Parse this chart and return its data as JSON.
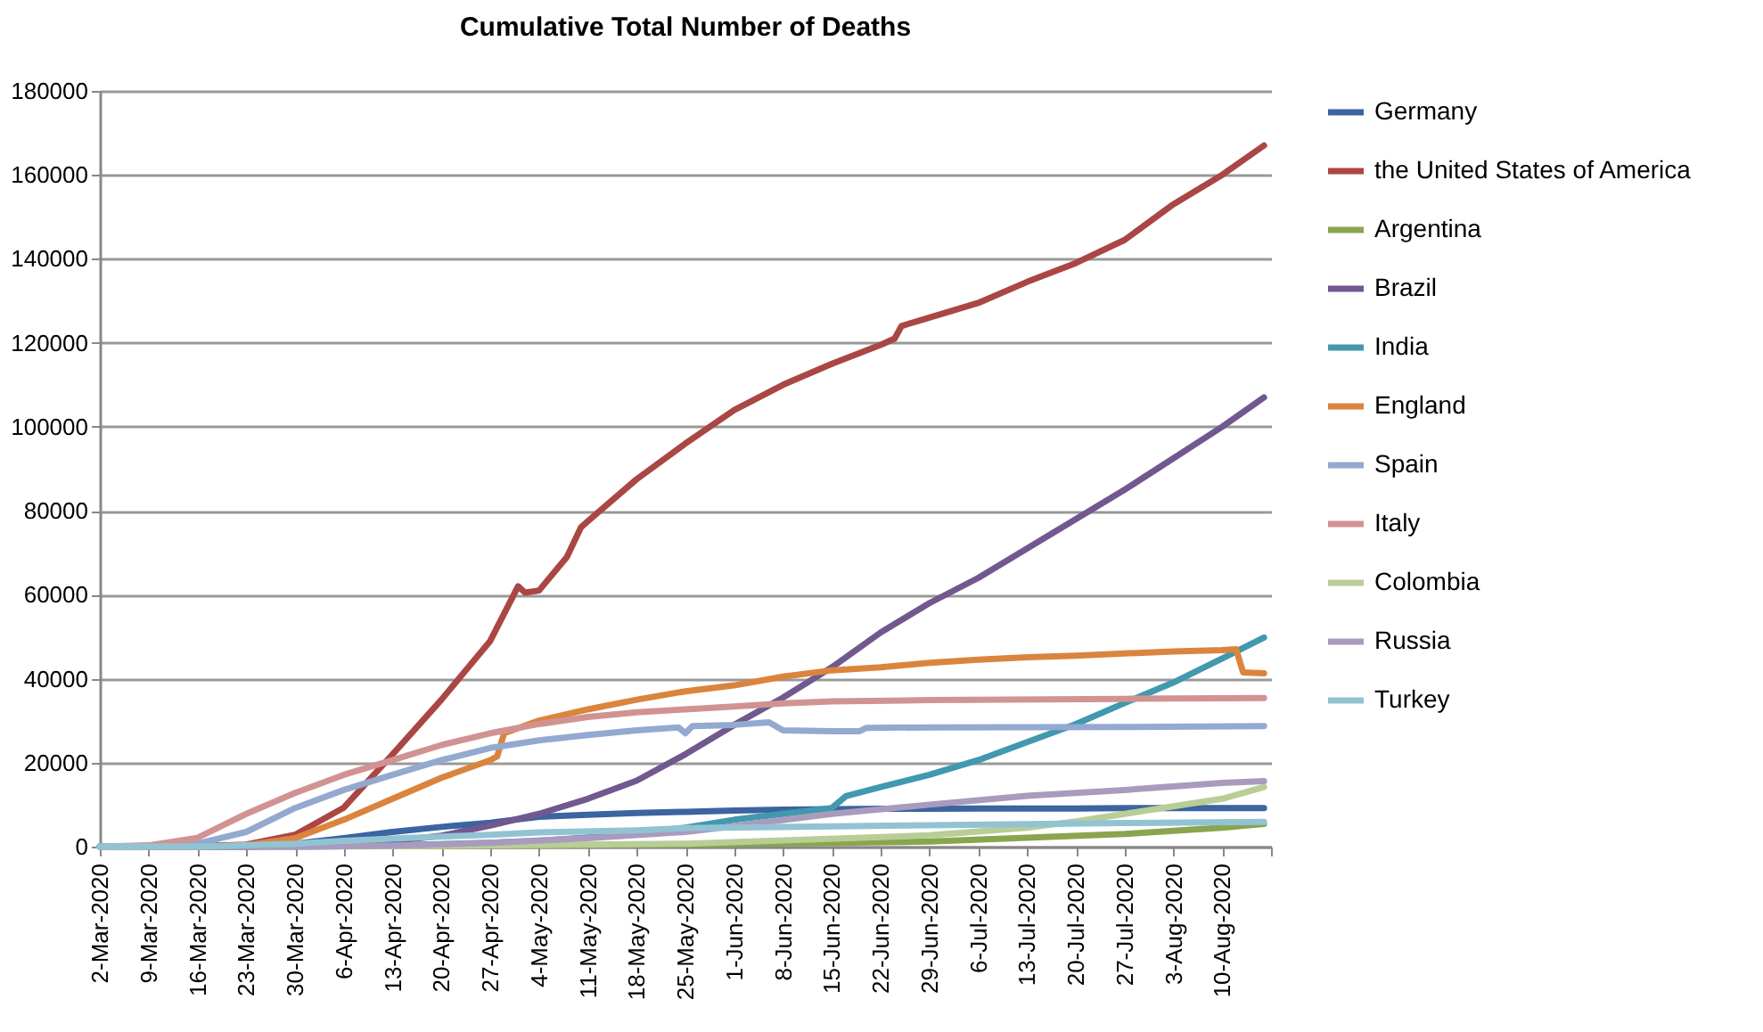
{
  "chart_data": {
    "type": "line",
    "title": "Cumulative Total Number of Deaths",
    "xlim": [
      "2020-03-02",
      "2020-08-17"
    ],
    "xticks": [
      {
        "value": "2020-03-02",
        "label": "2-Mar-2020"
      },
      {
        "value": "2020-03-09",
        "label": "9-Mar-2020"
      },
      {
        "value": "2020-03-16",
        "label": "16-Mar-2020"
      },
      {
        "value": "2020-03-23",
        "label": "23-Mar-2020"
      },
      {
        "value": "2020-03-30",
        "label": "30-Mar-2020"
      },
      {
        "value": "2020-04-06",
        "label": "6-Apr-2020"
      },
      {
        "value": "2020-04-13",
        "label": "13-Apr-2020"
      },
      {
        "value": "2020-04-20",
        "label": "20-Apr-2020"
      },
      {
        "value": "2020-04-27",
        "label": "27-Apr-2020"
      },
      {
        "value": "2020-05-04",
        "label": "4-May-2020"
      },
      {
        "value": "2020-05-11",
        "label": "11-May-2020"
      },
      {
        "value": "2020-05-18",
        "label": "18-May-2020"
      },
      {
        "value": "2020-05-25",
        "label": "25-May-2020"
      },
      {
        "value": "2020-06-01",
        "label": "1-Jun-2020"
      },
      {
        "value": "2020-06-08",
        "label": "8-Jun-2020"
      },
      {
        "value": "2020-06-15",
        "label": "15-Jun-2020"
      },
      {
        "value": "2020-06-22",
        "label": "22-Jun-2020"
      },
      {
        "value": "2020-06-29",
        "label": "29-Jun-2020"
      },
      {
        "value": "2020-07-06",
        "label": "6-Jul-2020"
      },
      {
        "value": "2020-07-13",
        "label": "13-Jul-2020"
      },
      {
        "value": "2020-07-20",
        "label": "20-Jul-2020"
      },
      {
        "value": "2020-07-27",
        "label": "27-Jul-2020"
      },
      {
        "value": "2020-08-03",
        "label": "3-Aug-2020"
      },
      {
        "value": "2020-08-10",
        "label": "10-Aug-2020"
      },
      {
        "value": "2020-08-17",
        "label": null
      }
    ],
    "ylim": [
      0,
      180000
    ],
    "yticks": [
      0,
      20000,
      40000,
      60000,
      80000,
      100000,
      120000,
      140000,
      160000,
      180000
    ],
    "grid": "y",
    "legend": "right",
    "series": [
      {
        "name": "Germany",
        "color": "#3b64a0",
        "x": [
          "2020-03-02",
          "2020-03-09",
          "2020-03-16",
          "2020-03-23",
          "2020-03-30",
          "2020-04-06",
          "2020-04-13",
          "2020-04-20",
          "2020-04-27",
          "2020-05-04",
          "2020-05-11",
          "2020-05-18",
          "2020-05-25",
          "2020-06-01",
          "2020-06-08",
          "2020-06-15",
          "2020-06-22",
          "2020-06-29",
          "2020-07-06",
          "2020-07-13",
          "2020-07-20",
          "2020-07-27",
          "2020-08-03",
          "2020-08-10",
          "2020-08-16"
        ],
        "values": [
          0,
          0,
          0,
          0,
          700,
          2000,
          3500,
          4700,
          5700,
          7100,
          7600,
          8000,
          8300,
          8600,
          8800,
          8900,
          9000,
          9000,
          9100,
          9100,
          9100,
          9200,
          9200,
          9200,
          9200
        ]
      },
      {
        "name": "the United States of America",
        "color": "#aa4643",
        "x": [
          "2020-03-02",
          "2020-03-09",
          "2020-03-16",
          "2020-03-23",
          "2020-03-30",
          "2020-04-06",
          "2020-04-13",
          "2020-04-20",
          "2020-04-27",
          "2020-05-01",
          "2020-05-02",
          "2020-05-04",
          "2020-05-08",
          "2020-05-10",
          "2020-05-11",
          "2020-05-18",
          "2020-05-25",
          "2020-06-01",
          "2020-06-08",
          "2020-06-15",
          "2020-06-22",
          "2020-06-24",
          "2020-06-25",
          "2020-06-29",
          "2020-07-06",
          "2020-07-13",
          "2020-07-20",
          "2020-07-27",
          "2020-08-03",
          "2020-08-10",
          "2020-08-16"
        ],
        "values": [
          0,
          0,
          100,
          500,
          2800,
          9300,
          22000,
          35000,
          49000,
          62000,
          60500,
          61000,
          69000,
          76000,
          77500,
          87500,
          96000,
          104000,
          110000,
          115000,
          119500,
          121000,
          124000,
          126000,
          129500,
          134500,
          139000,
          144500,
          153000,
          160000,
          167000
        ]
      },
      {
        "name": "Argentina",
        "color": "#89a54e",
        "x": [
          "2020-03-02",
          "2020-04-13",
          "2020-05-25",
          "2020-06-29",
          "2020-07-27",
          "2020-08-10",
          "2020-08-16"
        ],
        "values": [
          0,
          100,
          500,
          1200,
          3000,
          4500,
          5400
        ]
      },
      {
        "name": "Brazil",
        "color": "#71588f",
        "x": [
          "2020-03-02",
          "2020-03-09",
          "2020-03-16",
          "2020-03-23",
          "2020-03-30",
          "2020-04-06",
          "2020-04-13",
          "2020-04-20",
          "2020-04-27",
          "2020-05-04",
          "2020-05-11",
          "2020-05-18",
          "2020-05-25",
          "2020-06-01",
          "2020-06-08",
          "2020-06-15",
          "2020-06-22",
          "2020-06-29",
          "2020-07-06",
          "2020-07-13",
          "2020-07-20",
          "2020-07-27",
          "2020-08-03",
          "2020-08-10",
          "2020-08-16"
        ],
        "values": [
          0,
          0,
          0,
          0,
          200,
          600,
          1300,
          2600,
          5000,
          7800,
          11400,
          15700,
          22000,
          29000,
          35500,
          42700,
          51000,
          58000,
          64000,
          71000,
          78000,
          85000,
          92500,
          100000,
          107000
        ]
      },
      {
        "name": "India",
        "color": "#4198af",
        "x": [
          "2020-03-02",
          "2020-03-30",
          "2020-04-06",
          "2020-04-13",
          "2020-04-20",
          "2020-04-27",
          "2020-05-04",
          "2020-05-11",
          "2020-05-18",
          "2020-05-25",
          "2020-06-01",
          "2020-06-08",
          "2020-06-15",
          "2020-06-17",
          "2020-06-22",
          "2020-06-29",
          "2020-07-06",
          "2020-07-13",
          "2020-07-20",
          "2020-07-27",
          "2020-08-03",
          "2020-08-10",
          "2020-08-16"
        ],
        "values": [
          0,
          0,
          100,
          300,
          600,
          900,
          1400,
          2200,
          3200,
          4500,
          6400,
          7800,
          9200,
          12000,
          14200,
          17100,
          20600,
          24900,
          29200,
          34200,
          39100,
          44800,
          49800
        ]
      },
      {
        "name": "England",
        "color": "#db843d",
        "x": [
          "2020-03-02",
          "2020-03-09",
          "2020-03-16",
          "2020-03-23",
          "2020-03-30",
          "2020-04-06",
          "2020-04-13",
          "2020-04-20",
          "2020-04-27",
          "2020-04-28",
          "2020-04-29",
          "2020-05-04",
          "2020-05-11",
          "2020-05-18",
          "2020-05-25",
          "2020-06-01",
          "2020-06-08",
          "2020-06-15",
          "2020-06-22",
          "2020-06-29",
          "2020-07-06",
          "2020-07-13",
          "2020-07-20",
          "2020-07-27",
          "2020-08-03",
          "2020-08-10",
          "2020-08-12",
          "2020-08-13",
          "2020-08-16"
        ],
        "values": [
          0,
          0,
          0,
          300,
          2000,
          6400,
          11400,
          16400,
          20600,
          21500,
          27000,
          30000,
          32700,
          35000,
          37000,
          38400,
          40500,
          42000,
          42700,
          43800,
          44500,
          45100,
          45500,
          46000,
          46500,
          46800,
          47000,
          41500,
          41300
        ]
      },
      {
        "name": "Spain",
        "color": "#93a9cf",
        "x": [
          "2020-03-02",
          "2020-03-09",
          "2020-03-16",
          "2020-03-23",
          "2020-03-30",
          "2020-04-06",
          "2020-04-13",
          "2020-04-20",
          "2020-04-27",
          "2020-05-04",
          "2020-05-11",
          "2020-05-18",
          "2020-05-24",
          "2020-05-25",
          "2020-05-26",
          "2020-06-01",
          "2020-06-06",
          "2020-06-08",
          "2020-06-15",
          "2020-06-19",
          "2020-06-20",
          "2020-06-29",
          "2020-07-27",
          "2020-08-16"
        ],
        "values": [
          0,
          0,
          700,
          3500,
          9200,
          13500,
          17100,
          20600,
          23500,
          25300,
          26600,
          27700,
          28400,
          27000,
          28700,
          29000,
          29600,
          27700,
          27500,
          27500,
          28300,
          28400,
          28500,
          28700
        ]
      },
      {
        "name": "Italy",
        "color": "#d19392",
        "x": [
          "2020-03-02",
          "2020-03-09",
          "2020-03-16",
          "2020-03-23",
          "2020-03-30",
          "2020-04-06",
          "2020-04-13",
          "2020-04-20",
          "2020-04-27",
          "2020-05-04",
          "2020-05-11",
          "2020-05-18",
          "2020-05-25",
          "2020-06-01",
          "2020-06-08",
          "2020-06-15",
          "2020-06-29",
          "2020-07-27",
          "2020-08-16"
        ],
        "values": [
          0,
          300,
          2100,
          7800,
          12800,
          17100,
          20600,
          24200,
          27000,
          29200,
          30900,
          32000,
          32700,
          33400,
          34100,
          34600,
          34900,
          35200,
          35400
        ]
      },
      {
        "name": "Colombia",
        "color": "#b9cd96",
        "x": [
          "2020-03-02",
          "2020-04-13",
          "2020-05-25",
          "2020-06-29",
          "2020-07-13",
          "2020-07-20",
          "2020-07-27",
          "2020-08-03",
          "2020-08-10",
          "2020-08-16"
        ],
        "values": [
          0,
          100,
          700,
          2700,
          4500,
          6000,
          7800,
          9600,
          11400,
          14200
        ]
      },
      {
        "name": "Russia",
        "color": "#a99bbd",
        "x": [
          "2020-03-02",
          "2020-03-30",
          "2020-04-13",
          "2020-04-27",
          "2020-05-11",
          "2020-05-25",
          "2020-06-01",
          "2020-06-15",
          "2020-06-29",
          "2020-07-13",
          "2020-07-27",
          "2020-08-10",
          "2020-08-16"
        ],
        "values": [
          0,
          0,
          200,
          900,
          2000,
          3500,
          4900,
          7800,
          10000,
          12100,
          13500,
          15200,
          15600
        ]
      },
      {
        "name": "Turkey",
        "color": "#92c3d3",
        "x": [
          "2020-03-02",
          "2020-03-16",
          "2020-03-30",
          "2020-04-06",
          "2020-04-13",
          "2020-04-20",
          "2020-04-27",
          "2020-05-04",
          "2020-05-18",
          "2020-05-25",
          "2020-06-29",
          "2020-07-27",
          "2020-08-16"
        ],
        "values": [
          0,
          0,
          700,
          1400,
          1900,
          2400,
          2800,
          3400,
          3900,
          4400,
          5100,
          5600,
          5900
        ]
      }
    ]
  }
}
